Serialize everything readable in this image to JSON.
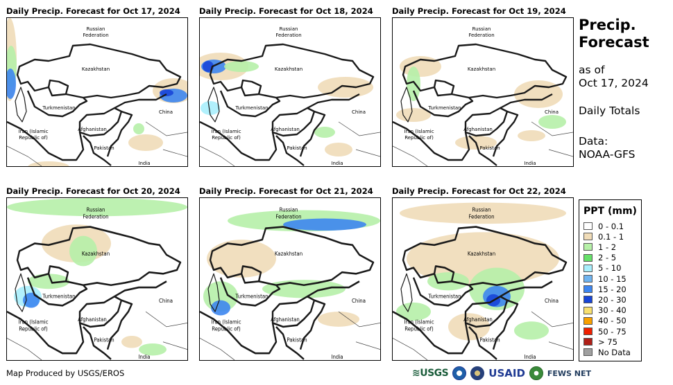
{
  "panels": [
    {
      "title": "Daily Precip. Forecast for Oct 17, 2024"
    },
    {
      "title": "Daily Precip. Forecast for Oct 18, 2024"
    },
    {
      "title": "Daily Precip. Forecast for Oct 19, 2024"
    },
    {
      "title": "Daily Precip. Forecast for Oct 20, 2024"
    },
    {
      "title": "Daily Precip. Forecast for Oct 21, 2024"
    },
    {
      "title": "Daily Precip. Forecast for Oct 22, 2024"
    }
  ],
  "map_labels": {
    "russia_line1": "Russian",
    "russia_line2": "Federation",
    "kazakhstan": "Kazakhstan",
    "turkmenistan": "Turkmenistan",
    "china": "China",
    "iran_line1": "Iran  (Islamic",
    "iran_line2": "Republic of)",
    "afghanistan": "Afghanistan",
    "pakistan": "Pakistan",
    "india": "India"
  },
  "sidebar": {
    "title_line1": "Precip.",
    "title_line2": "Forecast",
    "asof_line1": "as of",
    "asof_line2": "Oct 17, 2024",
    "totals": "Daily Totals",
    "data_line1": "Data:",
    "data_line2": "NOAA-GFS"
  },
  "legend": {
    "title": "PPT (mm)",
    "items": [
      {
        "label": "0 - 0.1",
        "color": "#ffffff"
      },
      {
        "label": "0.1 - 1",
        "color": "#f0dcb8"
      },
      {
        "label": "1 - 2",
        "color": "#b6f0a8"
      },
      {
        "label": "2 - 5",
        "color": "#66e06a"
      },
      {
        "label": "5 - 10",
        "color": "#a8eefc"
      },
      {
        "label": "10 - 15",
        "color": "#6fb4f0"
      },
      {
        "label": "15 - 20",
        "color": "#3d86f0"
      },
      {
        "label": "20 - 30",
        "color": "#1846d8"
      },
      {
        "label": "30 - 40",
        "color": "#f8e070"
      },
      {
        "label": "40 - 50",
        "color": "#f8a000"
      },
      {
        "label": "50 - 75",
        "color": "#f02000"
      },
      {
        "label": "> 75",
        "color": "#b02018"
      },
      {
        "label": "No Data",
        "color": "#a0a0a0"
      }
    ]
  },
  "footer": {
    "credit": "Map Produced by USGS/EROS",
    "logo_usgs": "≋USGS",
    "logo_usaid": "USAID",
    "logo_fews": "FEWS NET"
  },
  "colors": {
    "border": "#1a1a1a",
    "light_tan": "#f0dcb8",
    "light_green": "#b6f0a8",
    "green": "#66e06a",
    "light_blue": "#a8eefc",
    "blue": "#6fb4f0",
    "mid_blue": "#3d86f0",
    "dark_blue": "#1846d8"
  }
}
